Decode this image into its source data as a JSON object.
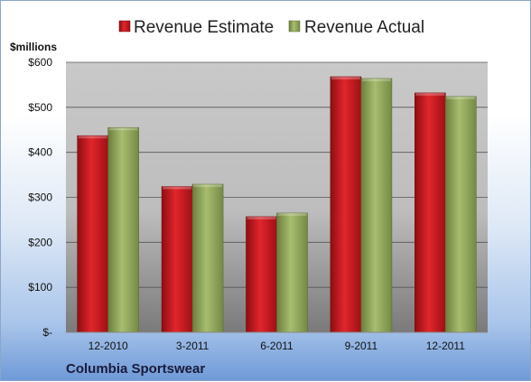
{
  "chart_data": {
    "type": "bar",
    "categories": [
      "12-2010",
      "3-2011",
      "6-2011",
      "9-2011",
      "12-2011"
    ],
    "series": [
      {
        "name": "Revenue Estimate",
        "color": "#c8161d",
        "values": [
          437,
          324,
          257,
          568,
          532
        ]
      },
      {
        "name": "Revenue Actual",
        "color": "#8fa65a",
        "values": [
          455,
          329,
          265,
          564,
          524
        ]
      }
    ],
    "ylabel": "$millions",
    "ylim": [
      0,
      600
    ],
    "yticks": [
      0,
      100,
      200,
      300,
      400,
      500,
      600
    ],
    "ytick_labels": [
      "$-",
      "$100",
      "$200",
      "$300",
      "$400",
      "$500",
      "$600"
    ],
    "grid": true,
    "legend": "top-center",
    "footer": "Columbia Sportswear"
  }
}
